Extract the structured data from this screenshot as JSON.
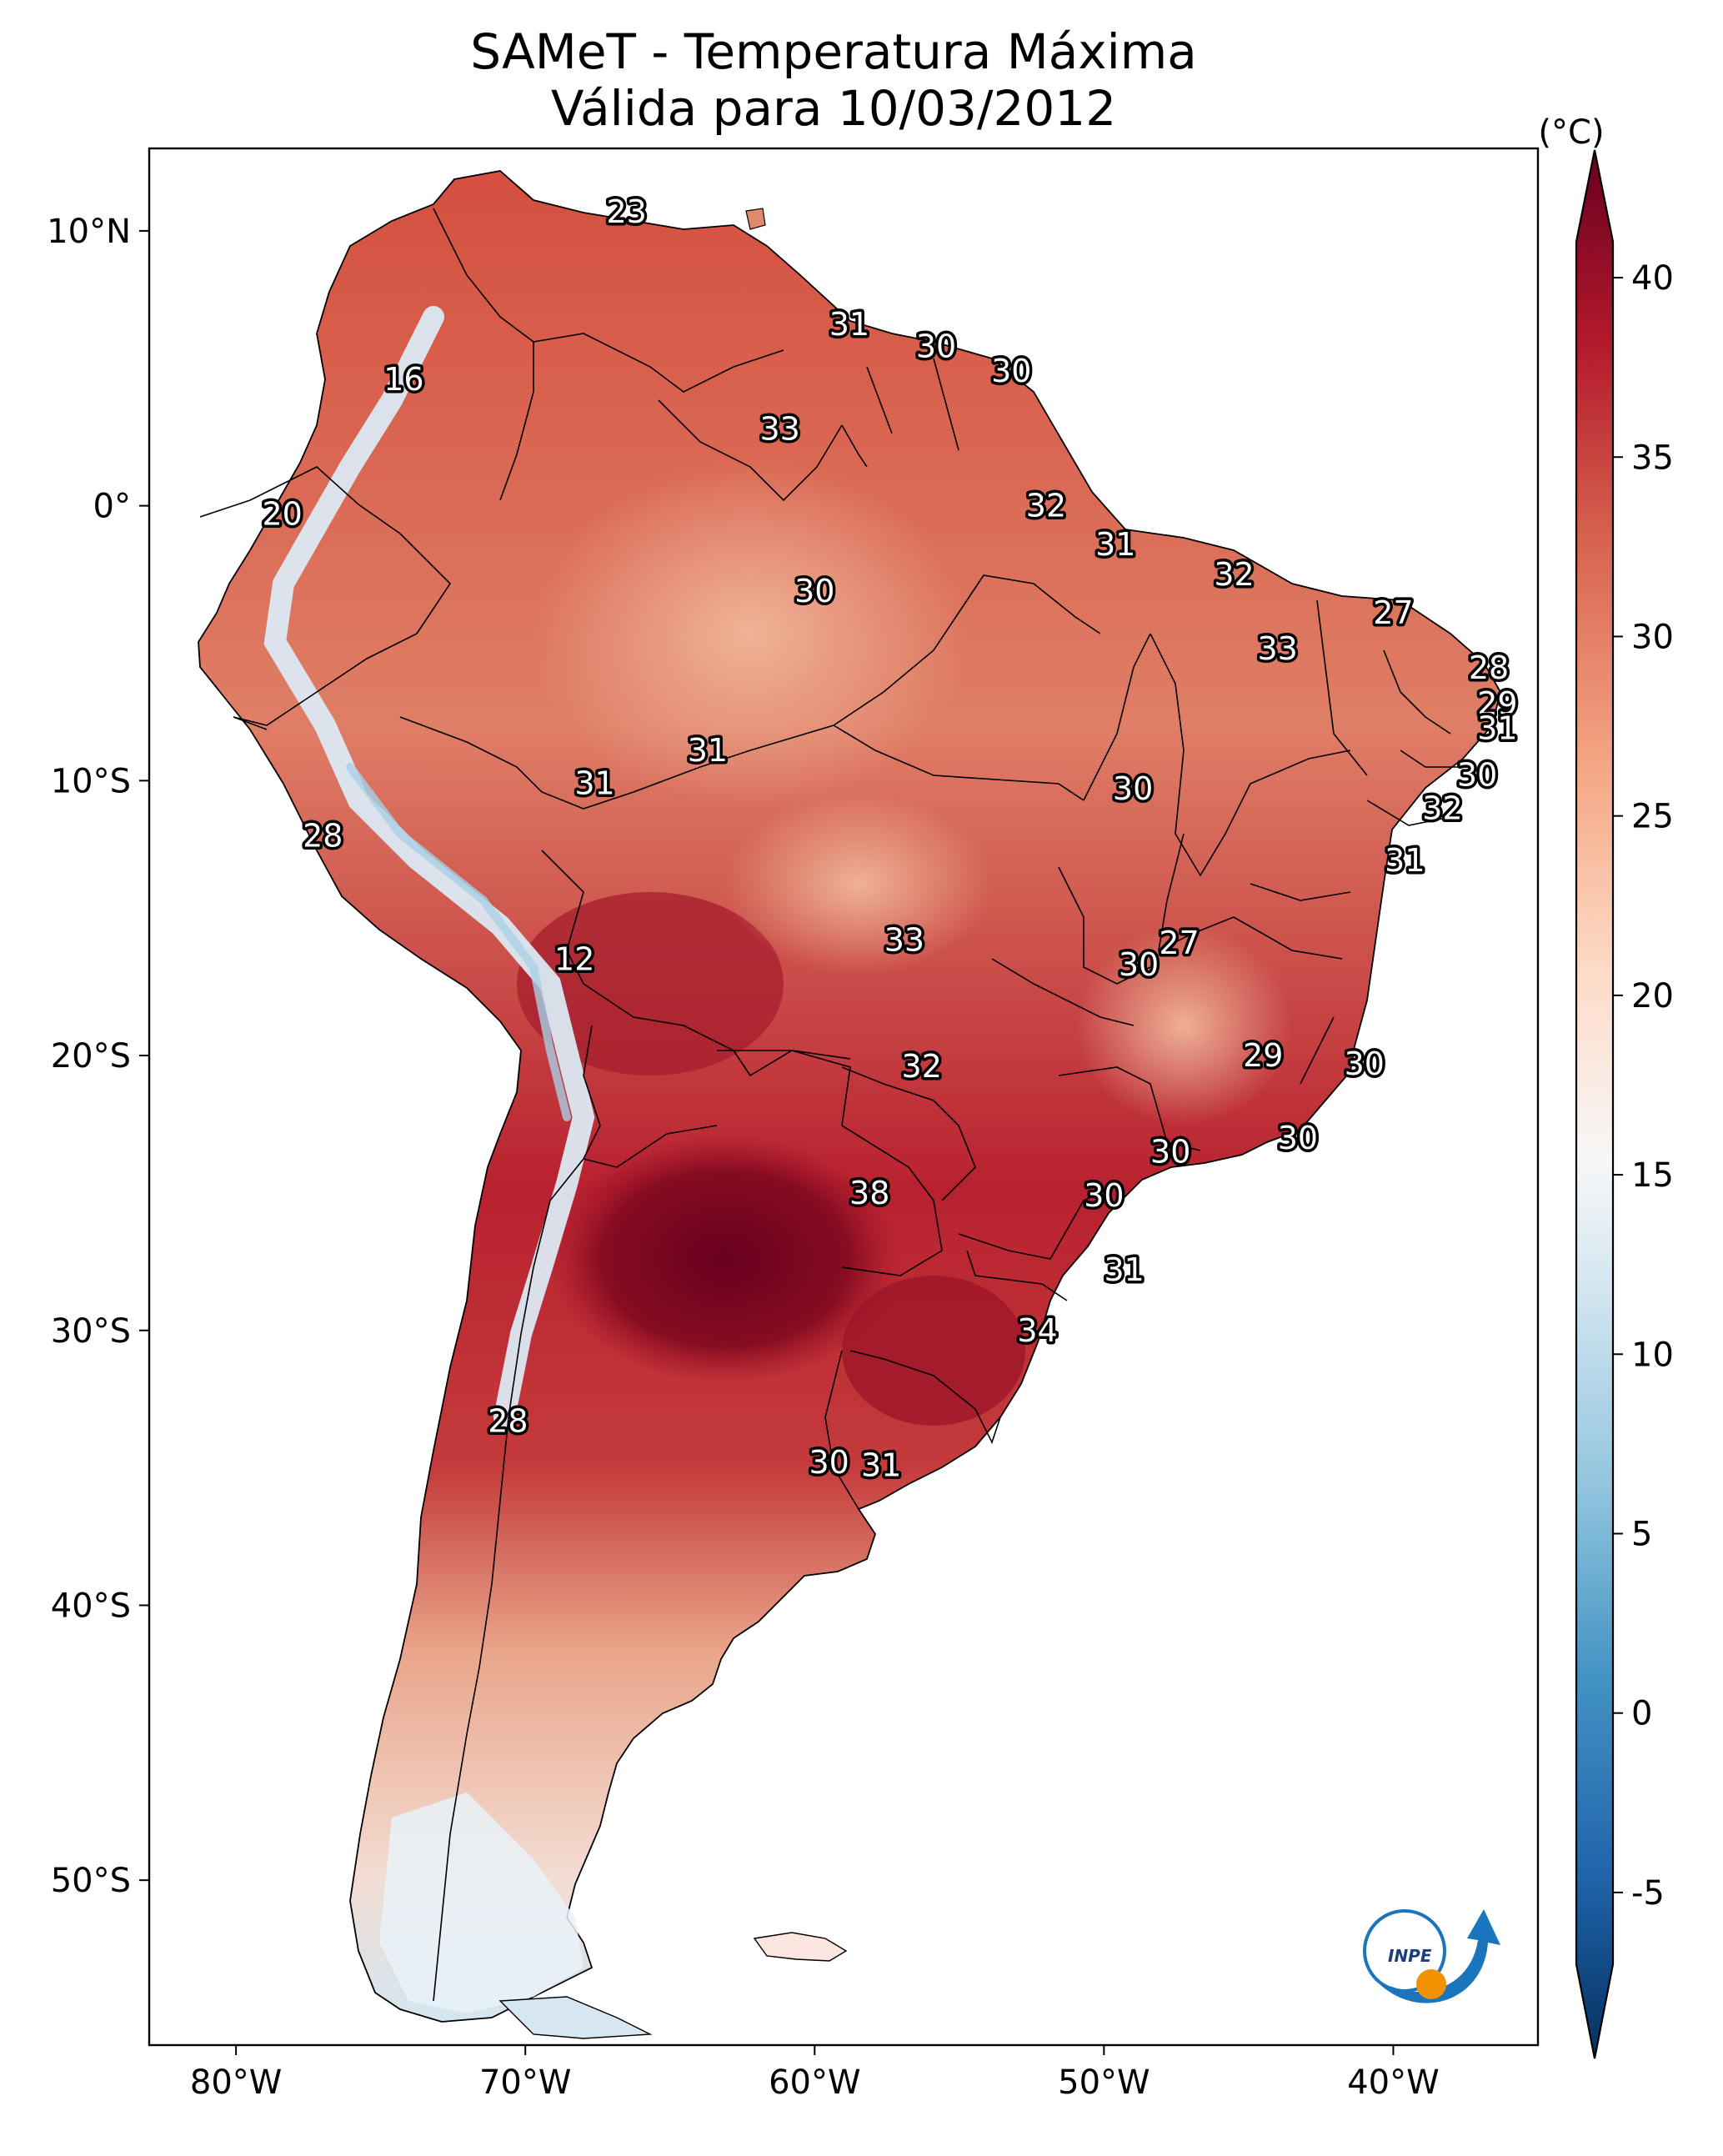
{
  "title": {
    "line1": "SAMeT - Temperatura Máxima",
    "line2": "Válida para 10/03/2012"
  },
  "colorbar": {
    "unit_label": "(°C)",
    "ticks": [
      40,
      35,
      30,
      25,
      20,
      15,
      10,
      5,
      0,
      -5
    ],
    "tick_labels": [
      "40",
      "35",
      "30",
      "25",
      "20",
      "15",
      "10",
      "5",
      "0",
      "-5"
    ],
    "range": [
      -7,
      41
    ],
    "colormap": "RdBu_r",
    "colors": [
      "#053061",
      "#2166ac",
      "#4393c3",
      "#92c5de",
      "#d1e5f0",
      "#f7f7f7",
      "#fddbc7",
      "#f4a582",
      "#d6604d",
      "#b2182b",
      "#67001f"
    ]
  },
  "axes": {
    "lon_ticks": [
      -80,
      -70,
      -60,
      -50,
      -40
    ],
    "lon_labels": [
      "80°W",
      "70°W",
      "60°W",
      "50°W",
      "40°W"
    ],
    "lat_ticks": [
      10,
      0,
      -10,
      -20,
      -30,
      -40,
      -50
    ],
    "lat_labels": [
      "10°N",
      "0°",
      "10°S",
      "20°S",
      "30°S",
      "40°S",
      "50°S"
    ],
    "lon_range": [
      -83,
      -35
    ],
    "lat_range": [
      -56,
      13
    ]
  },
  "logo": {
    "text": "INPE",
    "icon": "inpe-logo"
  },
  "map_labels": [
    {
      "text": "23",
      "lon": -66.5,
      "lat": 10.7
    },
    {
      "text": "16",
      "lon": -74.2,
      "lat": 4.6
    },
    {
      "text": "31",
      "lon": -58.8,
      "lat": 6.6
    },
    {
      "text": "30",
      "lon": -55.8,
      "lat": 5.8
    },
    {
      "text": "30",
      "lon": -53.2,
      "lat": 4.9
    },
    {
      "text": "33",
      "lon": -61.2,
      "lat": 2.8
    },
    {
      "text": "20",
      "lon": -78.4,
      "lat": -0.3
    },
    {
      "text": "32",
      "lon": -52.0,
      "lat": 0.0
    },
    {
      "text": "31",
      "lon": -49.6,
      "lat": -1.4
    },
    {
      "text": "32",
      "lon": -45.5,
      "lat": -2.5
    },
    {
      "text": "30",
      "lon": -60.0,
      "lat": -3.1
    },
    {
      "text": "27",
      "lon": -40.0,
      "lat": -3.9
    },
    {
      "text": "33",
      "lon": -44.0,
      "lat": -5.2
    },
    {
      "text": "28",
      "lon": -36.7,
      "lat": -5.9
    },
    {
      "text": "29",
      "lon": -36.4,
      "lat": -7.2
    },
    {
      "text": "31",
      "lon": -36.4,
      "lat": -8.1
    },
    {
      "text": "31",
      "lon": -63.7,
      "lat": -8.9
    },
    {
      "text": "31",
      "lon": -67.6,
      "lat": -10.1
    },
    {
      "text": "30",
      "lon": -49.0,
      "lat": -10.3
    },
    {
      "text": "30",
      "lon": -37.1,
      "lat": -9.8
    },
    {
      "text": "32",
      "lon": -38.3,
      "lat": -11.0
    },
    {
      "text": "28",
      "lon": -77.0,
      "lat": -12.0
    },
    {
      "text": "31",
      "lon": -39.6,
      "lat": -12.9
    },
    {
      "text": "33",
      "lon": -56.9,
      "lat": -15.8
    },
    {
      "text": "27",
      "lon": -47.4,
      "lat": -15.9
    },
    {
      "text": "30",
      "lon": -48.8,
      "lat": -16.7
    },
    {
      "text": "12",
      "lon": -68.3,
      "lat": -16.5
    },
    {
      "text": "29",
      "lon": -44.5,
      "lat": -20.0
    },
    {
      "text": "30",
      "lon": -41.0,
      "lat": -20.3
    },
    {
      "text": "32",
      "lon": -56.3,
      "lat": -20.4
    },
    {
      "text": "30",
      "lon": -43.3,
      "lat": -23.0
    },
    {
      "text": "30",
      "lon": -47.7,
      "lat": -23.5
    },
    {
      "text": "38",
      "lon": -58.1,
      "lat": -25.0
    },
    {
      "text": "30",
      "lon": -50.0,
      "lat": -25.1
    },
    {
      "text": "31",
      "lon": -49.3,
      "lat": -27.8
    },
    {
      "text": "34",
      "lon": -52.3,
      "lat": -30.0
    },
    {
      "text": "28",
      "lon": -70.6,
      "lat": -33.3
    },
    {
      "text": "30",
      "lon": -59.5,
      "lat": -34.8
    },
    {
      "text": "31",
      "lon": -57.7,
      "lat": -34.9
    }
  ]
}
